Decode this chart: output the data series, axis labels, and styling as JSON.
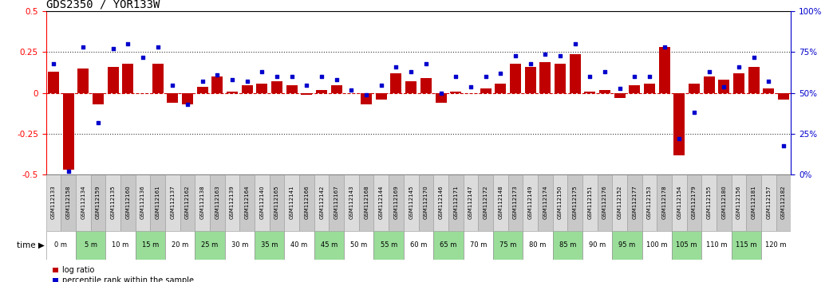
{
  "title": "GDS2350 / YOR133W",
  "gsm_labels": [
    "GSM112133",
    "GSM112158",
    "GSM112134",
    "GSM112159",
    "GSM112135",
    "GSM112160",
    "GSM112136",
    "GSM112161",
    "GSM112137",
    "GSM112162",
    "GSM112138",
    "GSM112163",
    "GSM112139",
    "GSM112164",
    "GSM112140",
    "GSM112165",
    "GSM112141",
    "GSM112166",
    "GSM112142",
    "GSM112167",
    "GSM112143",
    "GSM112168",
    "GSM112144",
    "GSM112169",
    "GSM112145",
    "GSM112170",
    "GSM112146",
    "GSM112171",
    "GSM112147",
    "GSM112172",
    "GSM112148",
    "GSM112173",
    "GSM112149",
    "GSM112174",
    "GSM112150",
    "GSM112175",
    "GSM112151",
    "GSM112176",
    "GSM112152",
    "GSM112177",
    "GSM112153",
    "GSM112178",
    "GSM112154",
    "GSM112179",
    "GSM112155",
    "GSM112180",
    "GSM112156",
    "GSM112181",
    "GSM112157",
    "GSM112182"
  ],
  "time_labels": [
    "0 m",
    "5 m",
    "10 m",
    "15 m",
    "20 m",
    "25 m",
    "30 m",
    "35 m",
    "40 m",
    "45 m",
    "50 m",
    "55 m",
    "60 m",
    "65 m",
    "70 m",
    "75 m",
    "80 m",
    "85 m",
    "90 m",
    "95 m",
    "100 m",
    "105 m",
    "110 m",
    "115 m",
    "120 m"
  ],
  "log_ratio": [
    0.13,
    -0.47,
    0.15,
    -0.07,
    0.16,
    0.18,
    0.0,
    0.18,
    -0.06,
    -0.07,
    0.04,
    0.1,
    0.01,
    0.05,
    0.06,
    0.07,
    0.05,
    -0.01,
    0.02,
    0.05,
    0.0,
    -0.07,
    -0.04,
    0.12,
    0.07,
    0.09,
    -0.06,
    0.01,
    0.0,
    0.03,
    0.06,
    0.18,
    0.16,
    0.19,
    0.18,
    0.24,
    0.01,
    0.02,
    -0.03,
    0.05,
    0.06,
    0.28,
    -0.38,
    0.06,
    0.1,
    0.08,
    0.12,
    0.16,
    0.03,
    -0.04
  ],
  "percentile_rank": [
    68,
    2,
    78,
    32,
    77,
    80,
    72,
    78,
    55,
    43,
    57,
    61,
    58,
    57,
    63,
    60,
    60,
    55,
    60,
    58,
    52,
    49,
    55,
    66,
    63,
    68,
    50,
    60,
    54,
    60,
    62,
    73,
    68,
    74,
    73,
    80,
    60,
    63,
    53,
    60,
    60,
    78,
    22,
    38,
    63,
    54,
    66,
    72,
    57,
    18
  ],
  "bar_color": "#C00000",
  "scatter_color": "#0000CC",
  "zero_line_color": "#CC0000",
  "dotted_line_color": "#333333",
  "ylim_left": [
    -0.5,
    0.5
  ],
  "ylim_right": [
    0,
    100
  ],
  "yticks_left": [
    -0.5,
    -0.25,
    0,
    0.25,
    0.5
  ],
  "yticks_right": [
    0,
    25,
    50,
    75,
    100
  ],
  "bg_color": "#FFFFFF",
  "title_fontsize": 10,
  "tick_fontsize": 7.5
}
